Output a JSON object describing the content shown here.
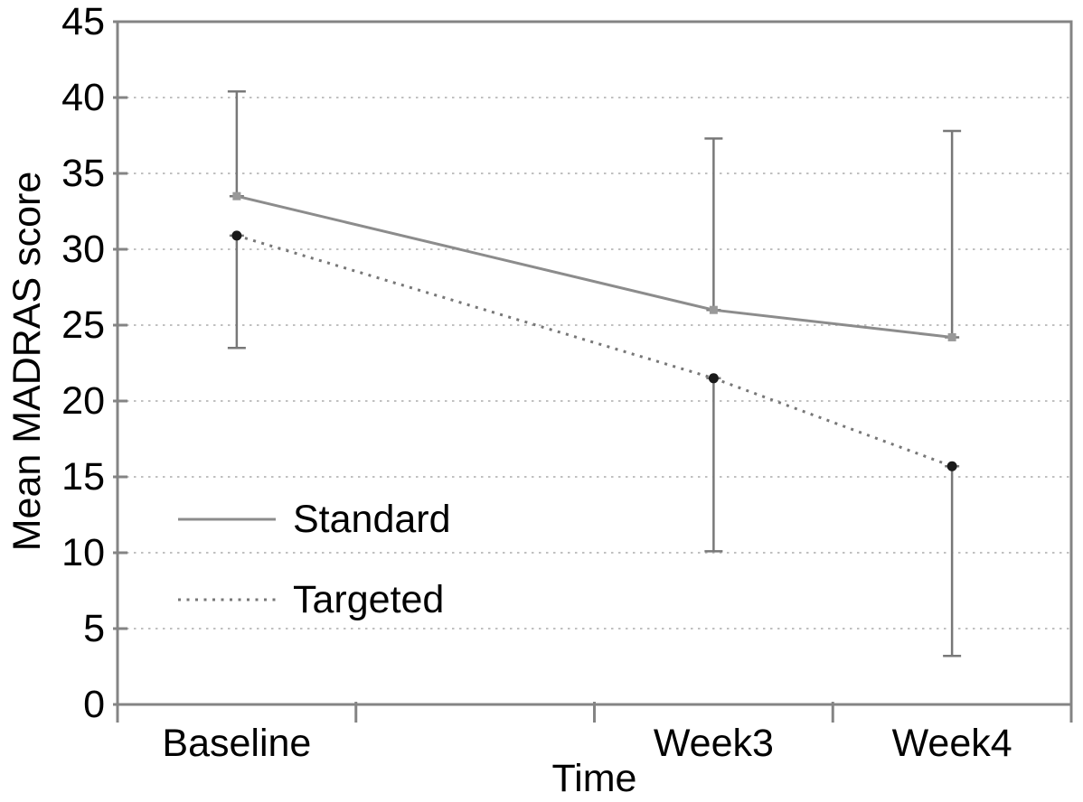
{
  "figure": {
    "background": "#ffffff"
  },
  "chart_data": {
    "type": "line",
    "title": "",
    "xlabel": "Time",
    "ylabel": "Mean MADRAS score",
    "categories": [
      "Baseline",
      "Week3",
      "Week4"
    ],
    "x_slot_count": 4,
    "x_slots": [
      0,
      2,
      3
    ],
    "ylim": [
      0,
      45
    ],
    "ytick_step": 5,
    "ytick_labels": [
      "0",
      "5",
      "10",
      "15",
      "20",
      "25",
      "30",
      "35",
      "40",
      "45"
    ],
    "grid": "horizontal-dotted",
    "legend_position": "inside-lower-left",
    "series": [
      {
        "name": "Standard",
        "line_style": "solid",
        "marker": "square",
        "color": "#8c8c8c",
        "marker_color": "#999999",
        "values": [
          33.5,
          26.0,
          24.2
        ],
        "error_upper": [
          40.4,
          37.3,
          37.8
        ],
        "error_lower": [
          null,
          null,
          null
        ]
      },
      {
        "name": "Targeted",
        "line_style": "dotted",
        "marker": "circle",
        "color": "#777777",
        "marker_color": "#1a1a1a",
        "values": [
          30.9,
          21.5,
          15.7
        ],
        "error_upper": [
          null,
          null,
          null
        ],
        "error_lower": [
          23.5,
          10.1,
          3.2
        ]
      }
    ],
    "error_bar_color": "#787878",
    "axis_color": "#848484",
    "grid_color": "#c0c0c0",
    "text_color": "#000000"
  }
}
